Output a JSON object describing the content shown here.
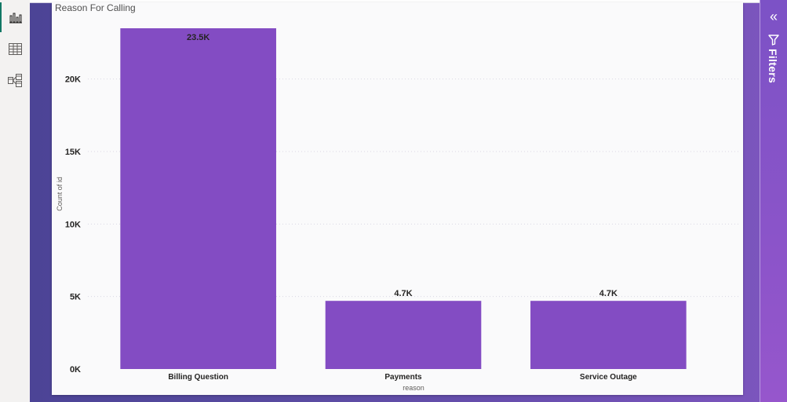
{
  "left_rail": {
    "items": [
      {
        "name": "report-view-icon",
        "active": true
      },
      {
        "name": "table-view-icon",
        "active": false
      },
      {
        "name": "model-view-icon",
        "active": false
      }
    ]
  },
  "filters_pane": {
    "label": "Filters",
    "collapse_glyph": "«"
  },
  "chart_data": {
    "type": "bar",
    "title": "Reason For Calling",
    "xlabel": "reason",
    "ylabel": "Count of id",
    "categories": [
      "Billing Question",
      "Payments",
      "Service Outage"
    ],
    "values": [
      23500,
      4700,
      4700
    ],
    "data_labels": [
      "23.5K",
      "4.7K",
      "4.7K"
    ],
    "ylim": [
      0,
      23500
    ],
    "yticks": [
      0,
      5000,
      10000,
      15000,
      20000
    ],
    "ytick_labels": [
      "0K",
      "5K",
      "10K",
      "15K",
      "20K"
    ],
    "bar_color": "#834cc3",
    "grid": true
  }
}
